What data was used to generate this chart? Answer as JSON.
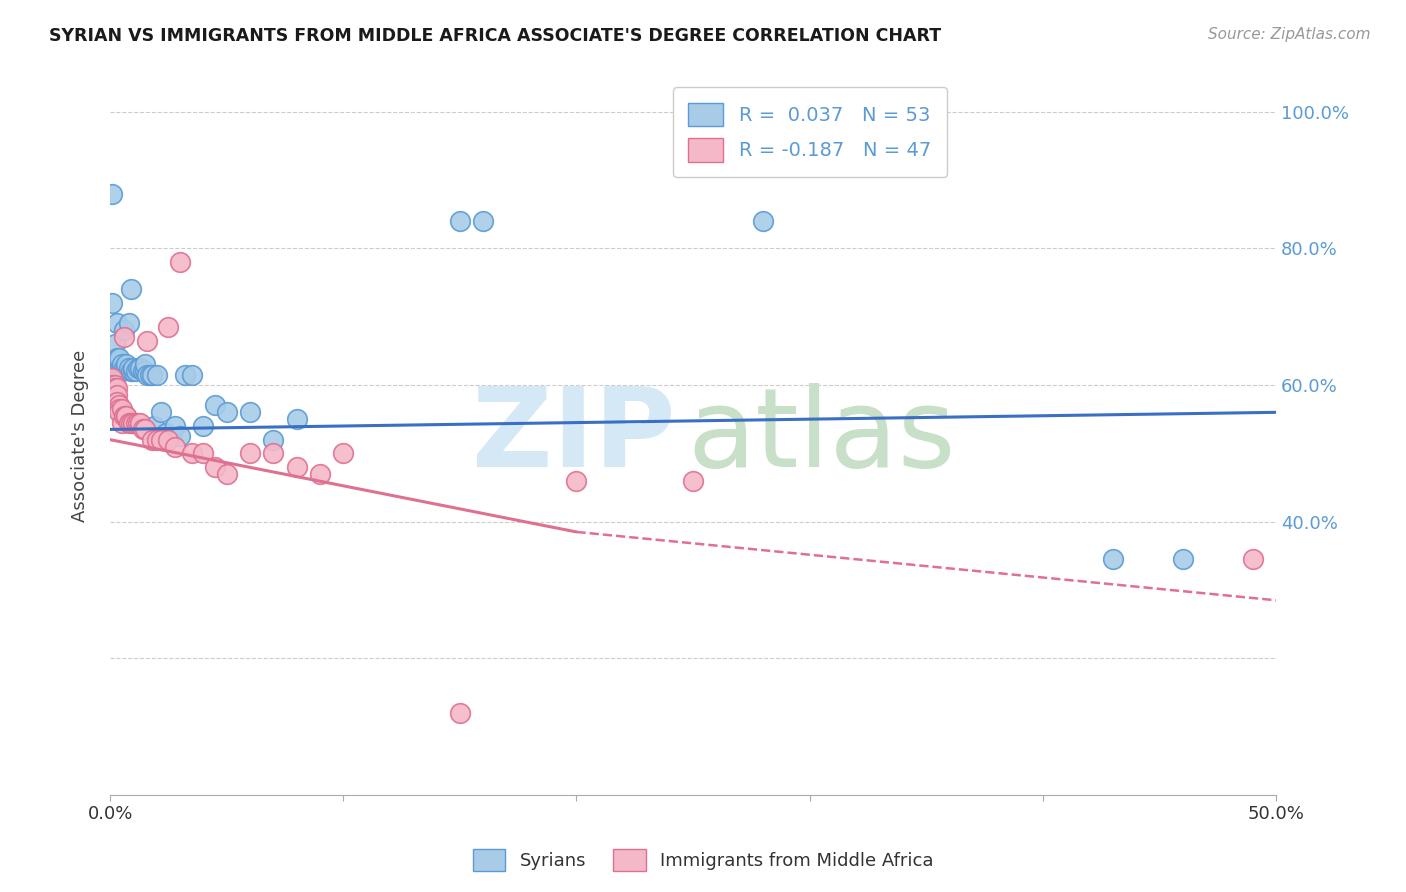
{
  "title": "SYRIAN VS IMMIGRANTS FROM MIDDLE AFRICA ASSOCIATE'S DEGREE CORRELATION CHART",
  "source": "Source: ZipAtlas.com",
  "ylabel": "Associate's Degree",
  "color_blue": "#a8cce8",
  "color_blue_edge": "#5b9bd5",
  "color_pink": "#f4b8c8",
  "color_pink_edge": "#e07090",
  "color_blue_line": "#3a6fc4",
  "color_pink_line": "#e07090",
  "watermark_zip_color": "#d5e8f5",
  "watermark_atlas_color": "#c8dfc8",
  "blue_x": [
    0.001,
    0.001,
    0.002,
    0.002,
    0.002,
    0.003,
    0.003,
    0.003,
    0.004,
    0.004,
    0.004,
    0.005,
    0.005,
    0.005,
    0.006,
    0.006,
    0.007,
    0.007,
    0.008,
    0.008,
    0.009,
    0.009,
    0.01,
    0.01,
    0.011,
    0.012,
    0.013,
    0.014,
    0.015,
    0.015,
    0.016,
    0.017,
    0.018,
    0.019,
    0.02,
    0.022,
    0.024,
    0.026,
    0.028,
    0.03,
    0.032,
    0.035,
    0.04,
    0.045,
    0.05,
    0.06,
    0.07,
    0.08,
    0.15,
    0.16,
    0.28,
    0.43,
    0.46
  ],
  "blue_y": [
    0.88,
    0.72,
    0.62,
    0.625,
    0.66,
    0.63,
    0.64,
    0.69,
    0.625,
    0.635,
    0.64,
    0.62,
    0.625,
    0.63,
    0.625,
    0.68,
    0.625,
    0.63,
    0.625,
    0.69,
    0.62,
    0.74,
    0.62,
    0.625,
    0.62,
    0.625,
    0.625,
    0.62,
    0.62,
    0.63,
    0.615,
    0.615,
    0.615,
    0.54,
    0.615,
    0.56,
    0.53,
    0.525,
    0.54,
    0.525,
    0.615,
    0.615,
    0.54,
    0.57,
    0.56,
    0.56,
    0.52,
    0.55,
    0.84,
    0.84,
    0.84,
    0.345,
    0.345
  ],
  "pink_x": [
    0.001,
    0.001,
    0.001,
    0.002,
    0.002,
    0.002,
    0.003,
    0.003,
    0.003,
    0.004,
    0.004,
    0.004,
    0.005,
    0.005,
    0.006,
    0.006,
    0.007,
    0.007,
    0.008,
    0.009,
    0.01,
    0.011,
    0.012,
    0.013,
    0.014,
    0.015,
    0.016,
    0.018,
    0.02,
    0.022,
    0.025,
    0.028,
    0.03,
    0.035,
    0.04,
    0.045,
    0.05,
    0.06,
    0.07,
    0.08,
    0.09,
    0.1,
    0.15,
    0.2,
    0.25,
    0.49,
    0.025
  ],
  "pink_y": [
    0.61,
    0.6,
    0.595,
    0.6,
    0.595,
    0.585,
    0.595,
    0.585,
    0.575,
    0.57,
    0.565,
    0.56,
    0.565,
    0.545,
    0.555,
    0.67,
    0.555,
    0.555,
    0.545,
    0.545,
    0.545,
    0.545,
    0.545,
    0.545,
    0.535,
    0.535,
    0.665,
    0.52,
    0.52,
    0.52,
    0.52,
    0.51,
    0.78,
    0.5,
    0.5,
    0.48,
    0.47,
    0.5,
    0.5,
    0.48,
    0.47,
    0.5,
    0.12,
    0.46,
    0.46,
    0.345,
    0.685
  ],
  "xlim": [
    0.0,
    0.5
  ],
  "ylim": [
    0.0,
    1.05
  ],
  "yticks": [
    0.0,
    0.2,
    0.4,
    0.6,
    0.8,
    1.0
  ],
  "ytick_labels_right": [
    "",
    "",
    "40.0%",
    "60.0%",
    "80.0%",
    "100.0%"
  ],
  "xtick_show": [
    "0.0%",
    "50.0%"
  ],
  "grid_color": "#cccccc",
  "grid_style": "--",
  "legend1_labels": [
    "R =  0.037   N = 53",
    "R = -0.187   N = 47"
  ],
  "legend2_labels": [
    "Syrians",
    "Immigrants from Middle Africa"
  ]
}
